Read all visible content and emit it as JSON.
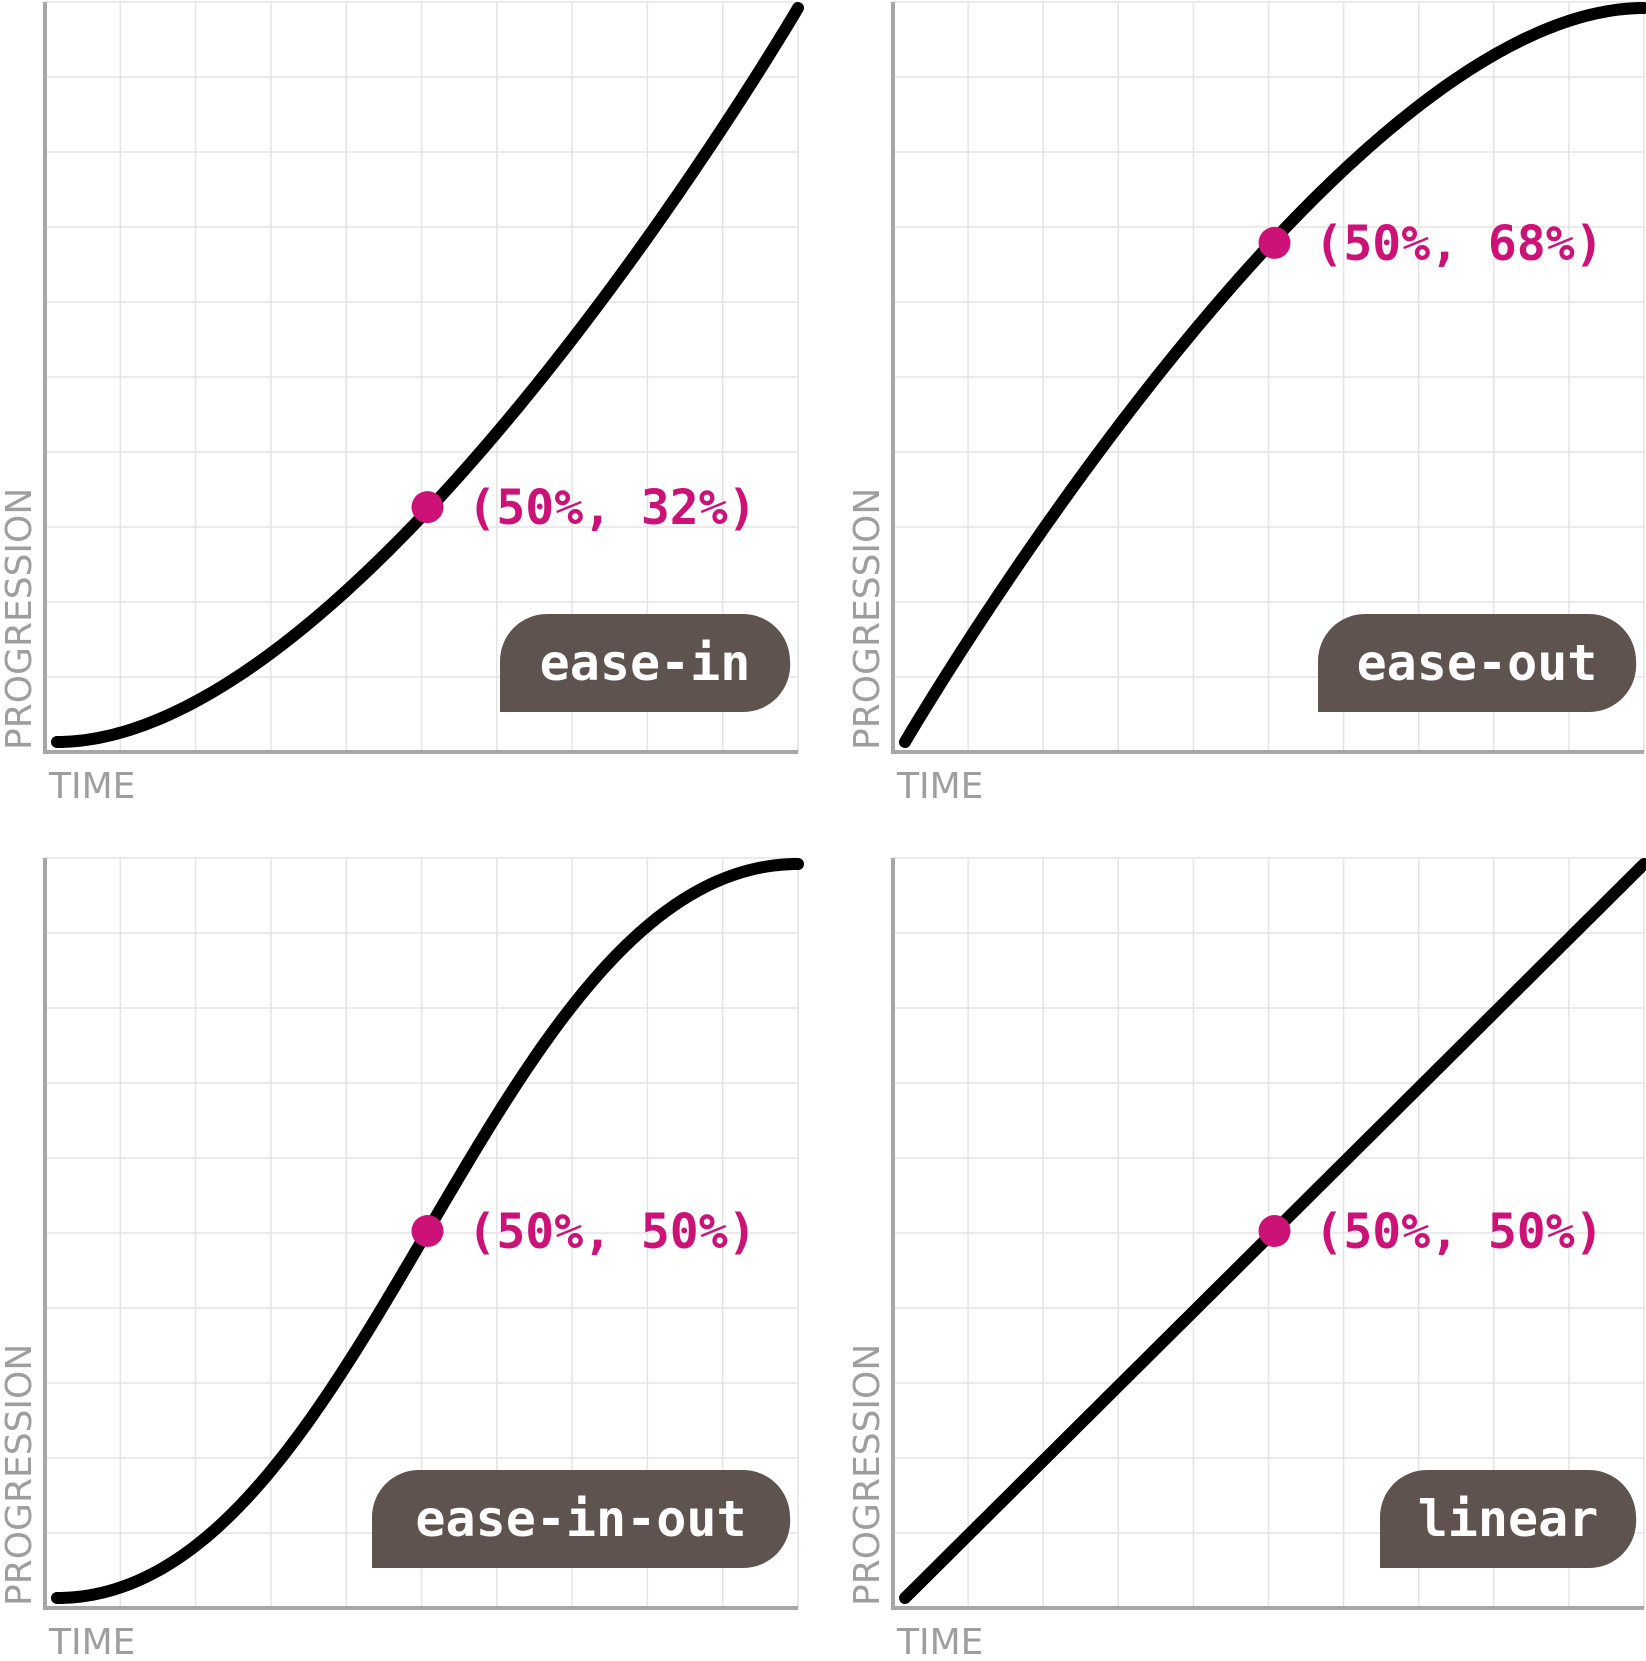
{
  "colors": {
    "curve": "#000000",
    "marker": "#cc1177",
    "badge": "#5e534f",
    "axis": "#a6a6a6",
    "grid": "#e4e4e4",
    "axis_text": "#9e9e9e"
  },
  "chart_data": [
    {
      "type": "line",
      "title": "ease-in",
      "xlabel": "TIME",
      "ylabel": "PROGRESSION",
      "xlim": [
        0,
        1
      ],
      "ylim": [
        0,
        1
      ],
      "grid": true,
      "bezier": [
        0.42,
        0,
        1,
        1
      ],
      "highlight": {
        "x": 0.5,
        "y": 0.32,
        "label": "(50%, 32%)"
      }
    },
    {
      "type": "line",
      "title": "ease-out",
      "xlabel": "TIME",
      "ylabel": "PROGRESSION",
      "xlim": [
        0,
        1
      ],
      "ylim": [
        0,
        1
      ],
      "grid": true,
      "bezier": [
        0,
        0,
        0.58,
        1
      ],
      "highlight": {
        "x": 0.5,
        "y": 0.68,
        "label": "(50%, 68%)"
      }
    },
    {
      "type": "line",
      "title": "ease-in-out",
      "xlabel": "TIME",
      "ylabel": "PROGRESSION",
      "xlim": [
        0,
        1
      ],
      "ylim": [
        0,
        1
      ],
      "grid": true,
      "bezier": [
        0.42,
        0,
        0.58,
        1
      ],
      "highlight": {
        "x": 0.5,
        "y": 0.5,
        "label": "(50%, 50%)"
      }
    },
    {
      "type": "line",
      "title": "linear",
      "xlabel": "TIME",
      "ylabel": "PROGRESSION",
      "xlim": [
        0,
        1
      ],
      "ylim": [
        0,
        1
      ],
      "grid": true,
      "bezier": [
        0,
        0,
        1,
        1
      ],
      "highlight": {
        "x": 0.5,
        "y": 0.5,
        "label": "(50%, 50%)"
      }
    }
  ]
}
